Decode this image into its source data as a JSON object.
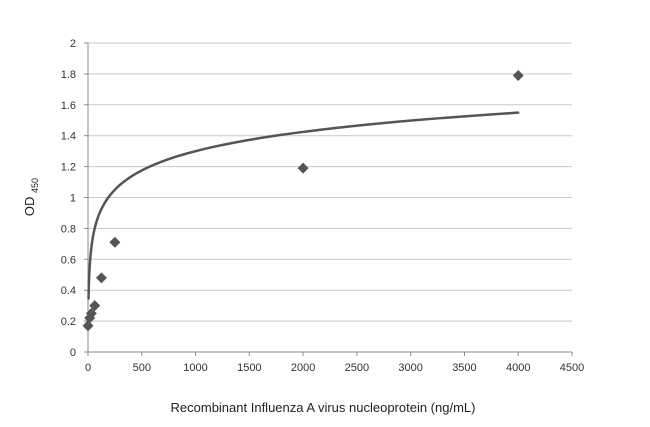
{
  "chart_data": {
    "type": "scatter",
    "title": "",
    "xlabel": "Recombinant Influenza A virus nucleoprotein (ng/mL)",
    "ylabel": "OD",
    "ylabel_subscript": "450",
    "xlim": [
      0,
      4500
    ],
    "ylim": [
      0,
      2
    ],
    "xticks": [
      "0",
      "500",
      "1000",
      "1500",
      "2000",
      "2500",
      "3000",
      "3500",
      "4000",
      "4500"
    ],
    "yticks": [
      "0",
      "0.2",
      "0.4",
      "0.6",
      "0.8",
      "1",
      "1.2",
      "1.4",
      "1.6",
      "1.8",
      "2"
    ],
    "grid": "horizontal",
    "legend": "none",
    "series": [
      {
        "marker": "diamond",
        "color": "#555555",
        "x": [
          0,
          15.6,
          31.25,
          62.5,
          125,
          250,
          2000,
          4000
        ],
        "y": [
          0.17,
          0.22,
          0.25,
          0.3,
          0.48,
          0.71,
          1.19,
          1.79
        ]
      }
    ],
    "trendline": {
      "type": "logarithmic",
      "color": "#555555",
      "x_start": 5,
      "x_end": 4000,
      "a": 0.18,
      "b": 0.0565
    }
  }
}
